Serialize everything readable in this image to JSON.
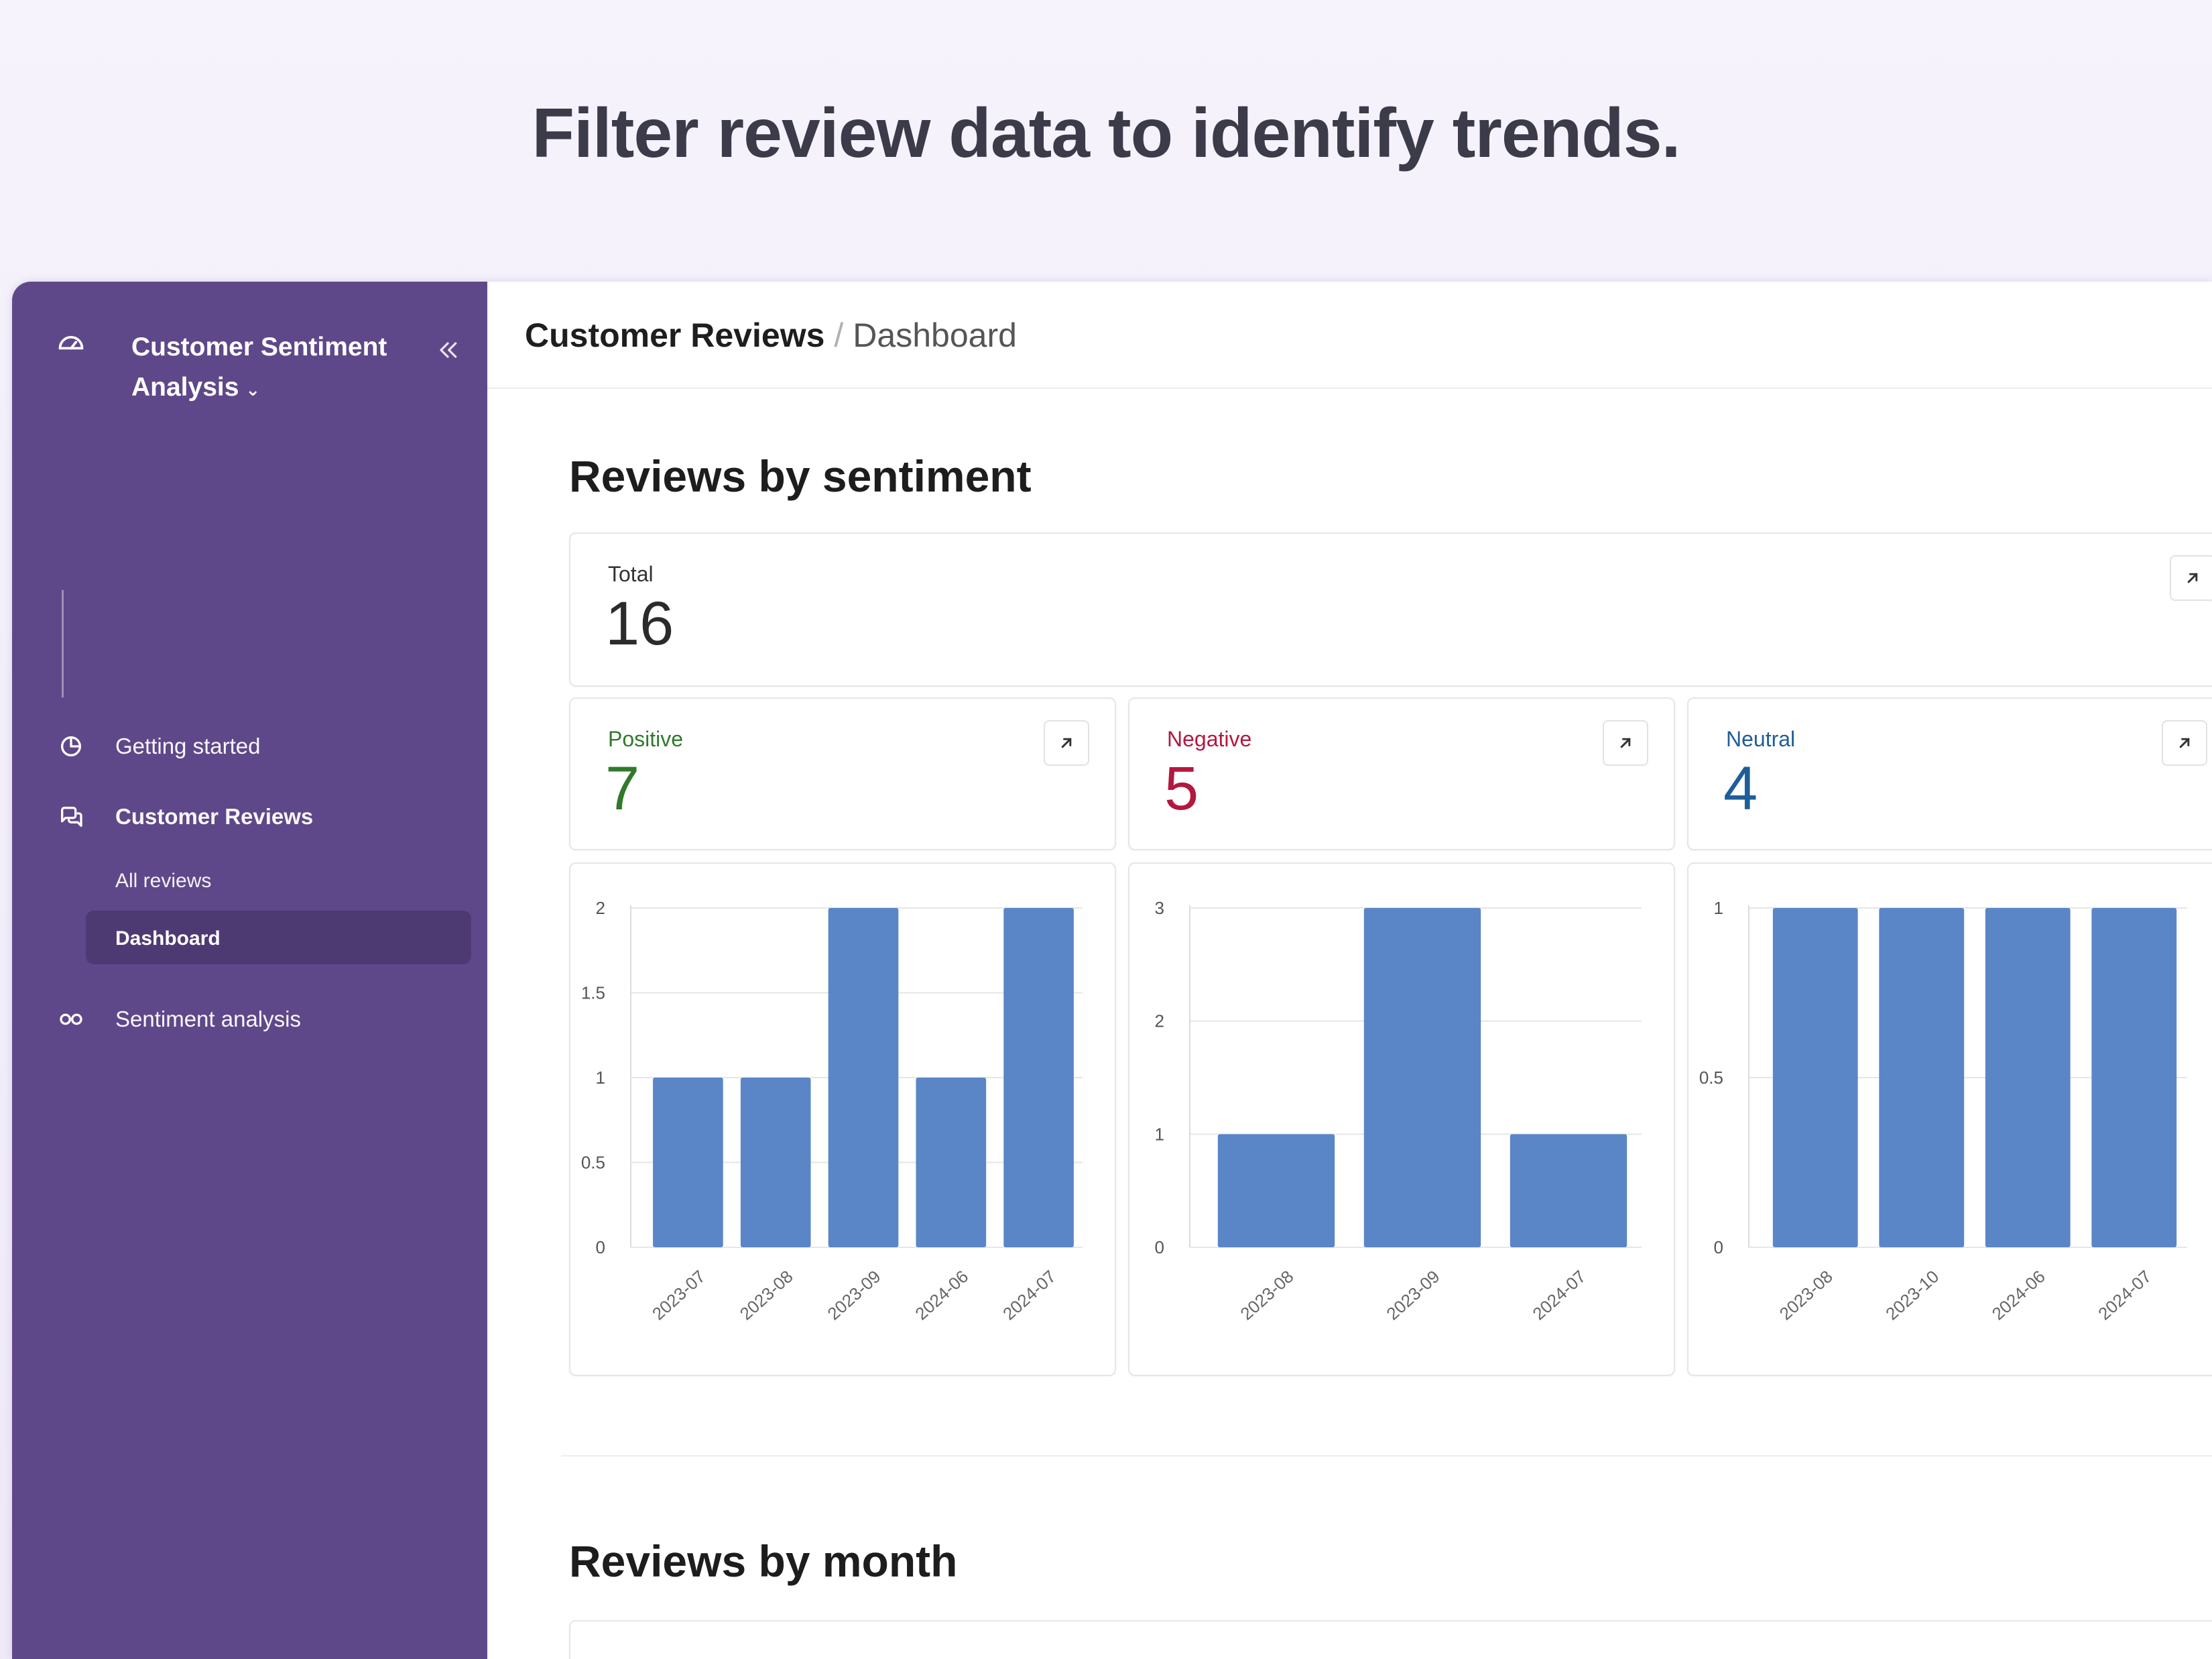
{
  "headline": "Filter review data to identify trends.",
  "sidebar": {
    "app_name": "Customer Sentiment Analysis",
    "caret": "⌄",
    "items": [
      {
        "label": "Getting started"
      },
      {
        "label": "Customer Reviews"
      },
      {
        "label": "Sentiment analysis"
      }
    ],
    "subitems": [
      {
        "label": "All reviews"
      },
      {
        "label": "Dashboard"
      }
    ]
  },
  "breadcrumb": {
    "parent": "Customer Reviews",
    "separator": "/",
    "current": "Dashboard"
  },
  "sections": {
    "sentiment_title": "Reviews by sentiment",
    "month_title": "Reviews by month"
  },
  "cards": {
    "total": {
      "label": "Total",
      "value": "16"
    },
    "positive": {
      "label": "Positive",
      "value": "7",
      "color": "#2f7a2b"
    },
    "negative": {
      "label": "Negative",
      "value": "5",
      "color": "#b3183f"
    },
    "neutral": {
      "label": "Neutral",
      "value": "4",
      "color": "#1f5d99"
    }
  },
  "icons": {
    "app": "speedometer-icon",
    "collapse": "double-chevron-left-icon",
    "getting_started": "rocket-icon",
    "customer_reviews": "chat-bubbles-icon",
    "sentiment_analysis": "infinity-icon",
    "expand": "arrow-up-right-icon"
  },
  "colors": {
    "sidebar_bg": "#5f4889",
    "bar": "#5a86c8"
  },
  "chart_data": [
    {
      "type": "bar",
      "series_name": "Positive",
      "categories": [
        "2023-07",
        "2023-08",
        "2023-09",
        "2024-06",
        "2024-07"
      ],
      "values": [
        1,
        1,
        2,
        1,
        2
      ],
      "yticks": [
        "0",
        "0.5",
        "1",
        "1.5",
        "2"
      ],
      "ylim": [
        0,
        2
      ],
      "grid": true
    },
    {
      "type": "bar",
      "series_name": "Negative",
      "categories": [
        "2023-08",
        "2023-09",
        "2024-07"
      ],
      "values": [
        1,
        3,
        1
      ],
      "yticks": [
        "0",
        "1",
        "2",
        "3"
      ],
      "ylim": [
        0,
        3
      ],
      "grid": true
    },
    {
      "type": "bar",
      "series_name": "Neutral",
      "categories": [
        "2023-08",
        "2023-10",
        "2024-06",
        "2024-07"
      ],
      "values": [
        1,
        1,
        1,
        1
      ],
      "yticks": [
        "0",
        "0.5",
        "1"
      ],
      "ylim": [
        0,
        1
      ],
      "grid": true
    }
  ]
}
